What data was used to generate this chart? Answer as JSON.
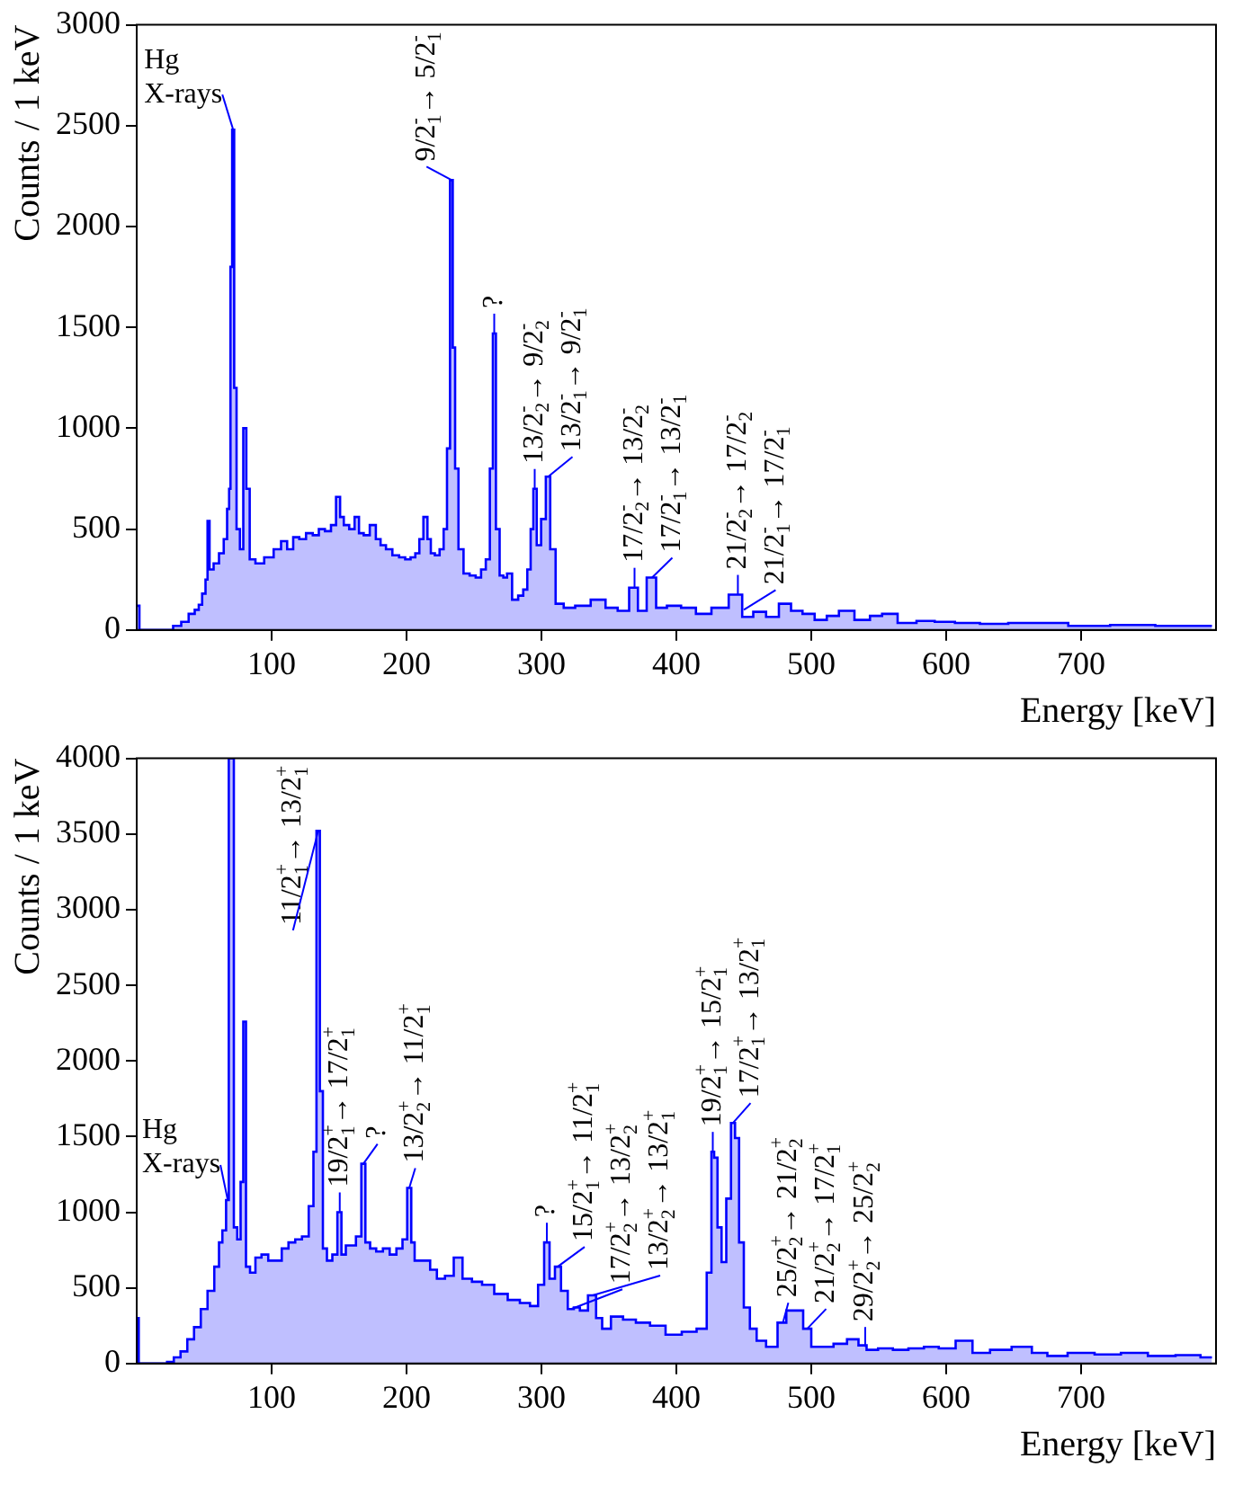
{
  "chart_data": [
    {
      "type": "step",
      "xlabel": "Energy [keV]",
      "ylabel": "Counts / 1 keV",
      "color": "#0000ff",
      "xlim": [
        0,
        800
      ],
      "xticks": [
        100,
        200,
        300,
        400,
        500,
        600,
        700
      ],
      "ylim": [
        0,
        3000
      ],
      "yticks": [
        0,
        500,
        1000,
        1500,
        2000,
        2500,
        3000
      ],
      "x": [
        0,
        1,
        3,
        24,
        30,
        36,
        41,
        45,
        47,
        50,
        52,
        53,
        55,
        59,
        63,
        66,
        68,
        69,
        70,
        71.5,
        73,
        75,
        78,
        80,
        82.5,
        85,
        91,
        98,
        105,
        109,
        114,
        118,
        123,
        128,
        133,
        137,
        142,
        146,
        149.5,
        152,
        155,
        160,
        163,
        166.5,
        170,
        175.5,
        179,
        182.5,
        187,
        192,
        197,
        201,
        205,
        208,
        211,
        214,
        217,
        219,
        223,
        226,
        229,
        231,
        233.5,
        235,
        237,
        240,
        244.5,
        249,
        253.5,
        257,
        260.5,
        263,
        265,
        267.5,
        270.5,
        273,
        276,
        280.5,
        285,
        288,
        291,
        293,
        295,
        298,
        301.5,
        305,
        308,
        313,
        320,
        330,
        343,
        352,
        361,
        369,
        374,
        382,
        388,
        398,
        409,
        420,
        432,
        445.6,
        452,
        462,
        471,
        481,
        489,
        498,
        507,
        516,
        525,
        539,
        548,
        557,
        571,
        585,
        598,
        615,
        635,
        657,
        678,
        703,
        740,
        770,
        797
      ],
      "values": [
        120,
        120,
        0,
        0,
        20,
        40,
        80,
        100,
        125,
        180,
        250,
        540,
        300,
        330,
        380,
        450,
        600,
        700,
        1800,
        2480,
        1200,
        500,
        400,
        1000,
        700,
        350,
        330,
        360,
        400,
        440,
        400,
        460,
        450,
        480,
        470,
        500,
        490,
        520,
        660,
        560,
        520,
        500,
        560,
        480,
        470,
        520,
        450,
        420,
        400,
        370,
        360,
        350,
        360,
        380,
        450,
        560,
        450,
        380,
        370,
        400,
        500,
        900,
        2230,
        1400,
        800,
        400,
        280,
        270,
        260,
        300,
        350,
        800,
        1470,
        500,
        270,
        260,
        280,
        150,
        170,
        200,
        300,
        500,
        700,
        420,
        550,
        760,
        400,
        130,
        110,
        120,
        150,
        110,
        95,
        210,
        95,
        260,
        110,
        120,
        110,
        80,
        110,
        175,
        65,
        90,
        65,
        130,
        95,
        80,
        50,
        70,
        95,
        50,
        70,
        80,
        35,
        45,
        40,
        35,
        30,
        35,
        35,
        20,
        25,
        20,
        20
      ],
      "annotations": [
        {
          "text": "Hg X-rays",
          "x": 71.5,
          "y": 2480
        },
        {
          "text": "9/2$^{-}$$_{1}$→ 5/2$^{-}$$_{1}$",
          "x": 233.5,
          "y": 2230
        },
        {
          "text": "?",
          "x": 265,
          "y": 1470
        },
        {
          "text": "13/2$^{-}$$_{2}$→ 9/2$^{-}$$_{2}$",
          "x": 295,
          "y": 700
        },
        {
          "text": "13/2$^{-}$$_{1}$→ 9/2$^{-}$$_{1}$",
          "x": 305,
          "y": 760
        },
        {
          "text": "17/2$^{-}$$_{2}$→ 13/2$^{-}$$_{2}$",
          "x": 369,
          "y": 210
        },
        {
          "text": "17/2$^{-}$$_{1}$→ 13/2$^{-}$$_{1}$",
          "x": 382,
          "y": 260
        },
        {
          "text": "21/2$^{-}$$_{2}$→ 17/2$^{-}$$_{2}$",
          "x": 445.6,
          "y": 175
        },
        {
          "text": "21/2$^{-}$$_{1}$→ 17/2$^{-}$$_{1}$",
          "x": 450,
          "y": 100
        }
      ]
    },
    {
      "type": "step",
      "xlabel": "Energy [keV]",
      "ylabel": "Counts / 1 keV",
      "color": "#0000ff",
      "xlim": [
        0,
        800
      ],
      "xticks": [
        100,
        200,
        300,
        400,
        500,
        600,
        700
      ],
      "ylim": [
        0,
        4000
      ],
      "yticks": [
        0,
        500,
        1000,
        1500,
        2000,
        2500,
        3000,
        3500,
        4000
      ],
      "x": [
        0,
        1,
        2,
        20,
        25,
        30,
        35,
        40,
        45,
        50,
        55,
        60,
        62,
        65,
        67.5,
        69,
        71,
        73,
        76,
        78,
        80,
        82,
        86,
        90,
        95,
        100,
        105,
        110,
        115,
        120,
        125,
        130,
        132,
        134.5,
        137,
        139,
        143,
        147,
        150.5,
        153,
        157,
        160,
        165,
        168,
        171,
        175,
        180,
        185,
        190,
        195,
        199,
        202,
        205,
        207,
        215,
        220,
        225,
        232,
        238,
        245,
        252,
        260,
        270,
        280,
        288,
        295,
        300,
        304,
        308,
        312,
        317,
        322,
        326,
        331,
        338,
        343,
        347,
        356,
        365,
        375,
        386,
        398,
        410,
        420,
        425,
        427,
        429,
        432,
        435,
        439,
        442,
        445,
        448,
        452,
        457,
        462,
        471,
        479,
        484,
        491,
        497,
        503,
        512,
        521,
        532,
        538,
        544,
        555,
        566,
        578,
        589,
        600,
        614,
        625,
        640,
        657,
        670,
        680,
        700,
        720,
        739,
        760,
        780,
        797
      ],
      "values": [
        300,
        300,
        0,
        0,
        10,
        40,
        80,
        160,
        240,
        360,
        480,
        640,
        800,
        880,
        1080,
        4000,
        4000,
        900,
        820,
        1200,
        2260,
        640,
        600,
        700,
        720,
        680,
        680,
        760,
        800,
        820,
        840,
        1040,
        1400,
        3520,
        1800,
        760,
        680,
        720,
        1000,
        720,
        780,
        780,
        840,
        1320,
        800,
        760,
        740,
        760,
        720,
        760,
        820,
        1160,
        800,
        680,
        680,
        620,
        560,
        580,
        700,
        560,
        540,
        520,
        460,
        420,
        400,
        380,
        520,
        800,
        560,
        640,
        480,
        360,
        370,
        350,
        450,
        300,
        230,
        310,
        290,
        270,
        250,
        190,
        210,
        230,
        600,
        1400,
        1360,
        900,
        670,
        1090,
        1590,
        1490,
        800,
        370,
        230,
        150,
        110,
        270,
        350,
        350,
        230,
        110,
        110,
        130,
        160,
        120,
        90,
        100,
        90,
        100,
        110,
        100,
        150,
        70,
        90,
        110,
        70,
        50,
        70,
        60,
        70,
        50,
        55,
        40
      ],
      "annotations": [
        {
          "text": "Hg X-rays",
          "x": 67.5,
          "y": 1080
        },
        {
          "text": "11/2$^{+}$$_{1}$→ 13/2$^{+}$$_{1}$",
          "x": 134.5,
          "y": 3520
        },
        {
          "text": "19/2$^{+}$$_{1}$→ 17/2$^{+}$$_{1}$",
          "x": 150.5,
          "y": 1000
        },
        {
          "text": "?",
          "x": 168,
          "y": 1320
        },
        {
          "text": "13/2$^{+}$$_{2}$→ 11/2$^{+}$$_{1}$",
          "x": 202,
          "y": 1160
        },
        {
          "text": "?",
          "x": 304,
          "y": 800
        },
        {
          "text": "15/2$^{+}$$_{1}$→ 11/2$^{+}$$_{1}$",
          "x": 312,
          "y": 640
        },
        {
          "text": "17/2$^{+}$$_{2}$→ 13/2$^{+}$$_{2}$",
          "x": 322,
          "y": 360
        },
        {
          "text": "13/2$^{+}$$_{2}$→ 13/2$^{+}$$_{1}$",
          "x": 338,
          "y": 450
        },
        {
          "text": "19/2$^{+}$$_{1}$→ 15/2$^{+}$$_{1}$",
          "x": 427,
          "y": 1400
        },
        {
          "text": "17/2$^{+}$$_{1}$→ 13/2$^{+}$$_{1}$",
          "x": 442,
          "y": 1590
        },
        {
          "text": "25/2$^{+}$$_{2}$→ 21/2$^{+}$$_{2}$",
          "x": 479,
          "y": 270
        },
        {
          "text": "21/2$^{+}$$_{2}$→ 17/2$^{+}$$_{1}$",
          "x": 497,
          "y": 230
        },
        {
          "text": "29/2$^{+}$$_{2}$→ 25/2$^{+}$$_{2}$",
          "x": 540,
          "y": 110
        }
      ]
    }
  ]
}
